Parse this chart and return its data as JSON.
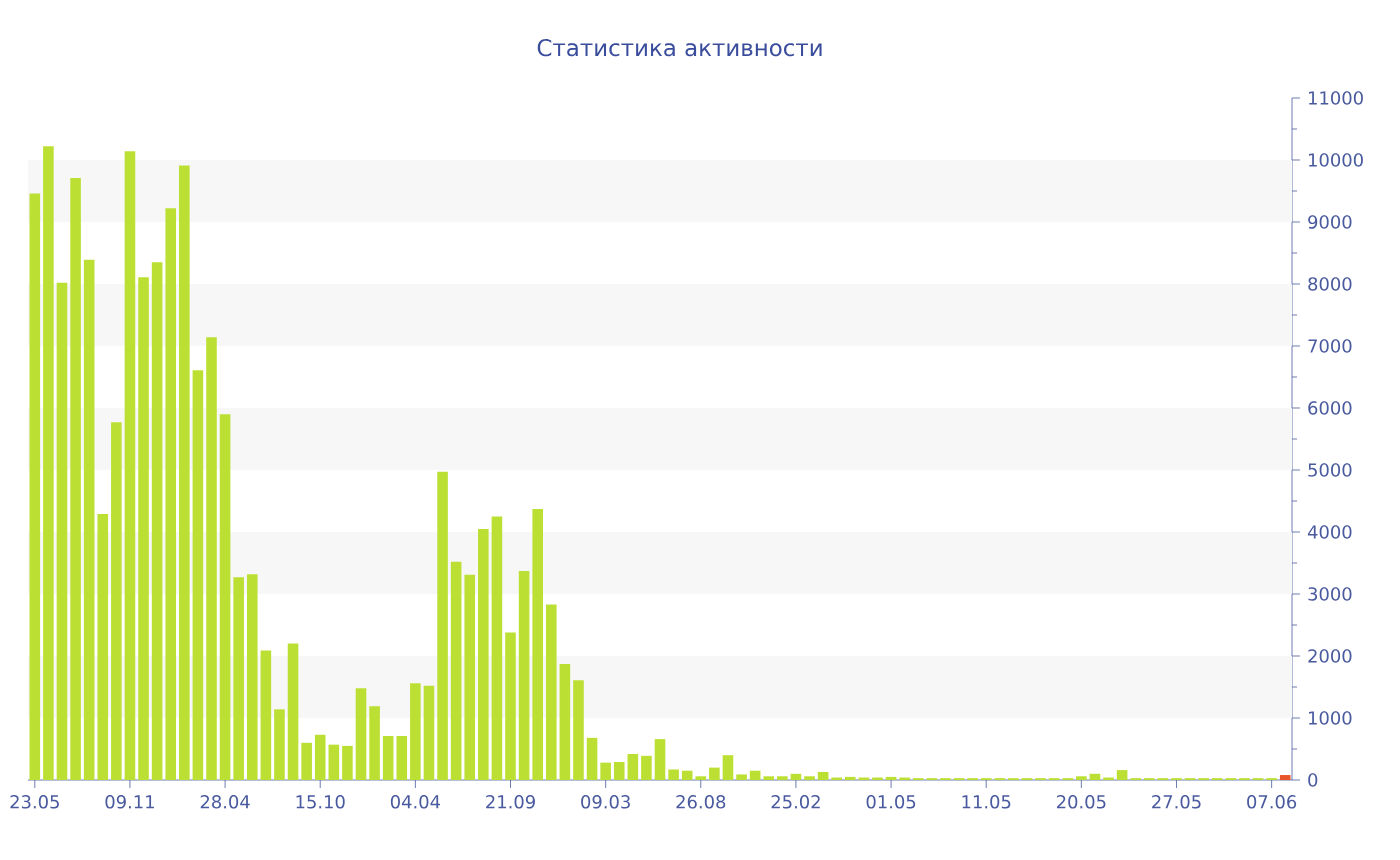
{
  "chart_data": {
    "type": "bar",
    "title": "Статистика активности",
    "categories": [
      "23.05",
      null,
      null,
      null,
      null,
      null,
      null,
      "09.11",
      null,
      null,
      null,
      null,
      null,
      null,
      "28.04",
      null,
      null,
      null,
      null,
      null,
      null,
      "15.10",
      null,
      null,
      null,
      null,
      null,
      null,
      "04.04",
      null,
      null,
      null,
      null,
      null,
      null,
      "21.09",
      null,
      null,
      null,
      null,
      null,
      null,
      "09.03",
      null,
      null,
      null,
      null,
      null,
      null,
      "26.08",
      null,
      null,
      null,
      null,
      null,
      null,
      "25.02",
      null,
      null,
      null,
      null,
      null,
      null,
      "01.05",
      null,
      null,
      null,
      null,
      null,
      null,
      "11.05",
      null,
      null,
      null,
      null,
      null,
      null,
      "20.05",
      null,
      null,
      null,
      null,
      null,
      null,
      "27.05",
      null,
      null,
      null,
      null,
      null,
      null,
      "07.06",
      null
    ],
    "values": [
      9460,
      10220,
      8020,
      9710,
      8390,
      4290,
      5770,
      10140,
      8110,
      8350,
      9220,
      9910,
      6610,
      7140,
      5900,
      3270,
      3320,
      2090,
      1140,
      2200,
      600,
      730,
      570,
      550,
      1480,
      1190,
      710,
      710,
      1560,
      1520,
      4970,
      3520,
      3310,
      4050,
      4250,
      2380,
      3370,
      4370,
      2830,
      1870,
      1610,
      680,
      280,
      290,
      420,
      390,
      660,
      170,
      150,
      60,
      200,
      400,
      90,
      150,
      60,
      60,
      100,
      60,
      130,
      40,
      50,
      40,
      40,
      50,
      40,
      30,
      30,
      30,
      30,
      30,
      30,
      30,
      30,
      30,
      30,
      30,
      30,
      60,
      100,
      40,
      160,
      30,
      30,
      30,
      30,
      30,
      30,
      30,
      30,
      30,
      30,
      30,
      80
    ],
    "colors": [
      "#bbe033",
      "#bbe033",
      "#bbe033",
      "#bbe033",
      "#bbe033",
      "#bbe033",
      "#bbe033",
      "#bbe033",
      "#bbe033",
      "#bbe033",
      "#bbe033",
      "#bbe033",
      "#bbe033",
      "#bbe033",
      "#bbe033",
      "#bbe033",
      "#bbe033",
      "#bbe033",
      "#bbe033",
      "#bbe033",
      "#bbe033",
      "#bbe033",
      "#bbe033",
      "#bbe033",
      "#bbe033",
      "#bbe033",
      "#bbe033",
      "#bbe033",
      "#bbe033",
      "#bbe033",
      "#bbe033",
      "#bbe033",
      "#bbe033",
      "#bbe033",
      "#bbe033",
      "#bbe033",
      "#bbe033",
      "#bbe033",
      "#bbe033",
      "#bbe033",
      "#bbe033",
      "#bbe033",
      "#bbe033",
      "#bbe033",
      "#bbe033",
      "#bbe033",
      "#bbe033",
      "#bbe033",
      "#bbe033",
      "#bbe033",
      "#bbe033",
      "#bbe033",
      "#bbe033",
      "#bbe033",
      "#bbe033",
      "#bbe033",
      "#bbe033",
      "#bbe033",
      "#bbe033",
      "#bbe033",
      "#bbe033",
      "#bbe033",
      "#bbe033",
      "#bbe033",
      "#bbe033",
      "#bbe033",
      "#bbe033",
      "#bbe033",
      "#bbe033",
      "#bbe033",
      "#bbe033",
      "#bbe033",
      "#bbe033",
      "#bbe033",
      "#bbe033",
      "#bbe033",
      "#bbe033",
      "#bbe033",
      "#bbe033",
      "#bbe033",
      "#bbe033",
      "#bbe033",
      "#bbe033",
      "#bbe033",
      "#bbe033",
      "#bbe033",
      "#bbe033",
      "#bbe033",
      "#bbe033",
      "#bbe033",
      "#bbe033",
      "#bbe033",
      "#e8552a"
    ],
    "ylim": [
      0,
      11000
    ],
    "yticks": [
      0,
      1000,
      2000,
      3000,
      4000,
      5000,
      6000,
      7000,
      8000,
      9000,
      10000,
      11000
    ],
    "bands": [
      {
        "axis": "y",
        "from": 1000,
        "to": 2000,
        "color": "#f7f7f7"
      },
      {
        "axis": "y",
        "from": 3000,
        "to": 4000,
        "color": "#f7f7f7"
      },
      {
        "axis": "y",
        "from": 5000,
        "to": 6000,
        "color": "#f7f7f7"
      },
      {
        "axis": "y",
        "from": 7000,
        "to": 8000,
        "color": "#f7f7f7"
      },
      {
        "axis": "y",
        "from": 9000,
        "to": 10000,
        "color": "#f7f7f7"
      }
    ]
  }
}
